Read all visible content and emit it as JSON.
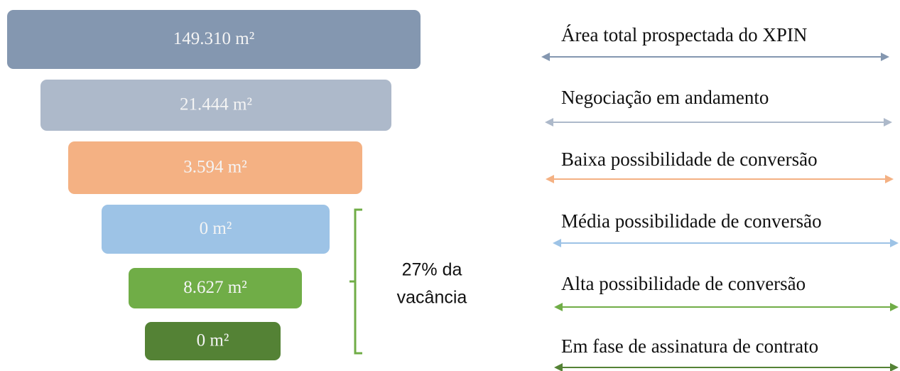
{
  "stages": [
    {
      "label": "149.310 m²",
      "description": "Área total prospectada do XPIN",
      "color": "#8497b0"
    },
    {
      "label": "21.444 m²",
      "description": "Negociação em andamento",
      "color": "#adb9ca"
    },
    {
      "label": "3.594 m²",
      "description": "Baixa possibilidade de conversão",
      "color": "#f4b183"
    },
    {
      "label": "0 m²",
      "description": "Média possibilidade de conversão",
      "color": "#9dc3e6"
    },
    {
      "label": "8.627 m²",
      "description": "Alta possibilidade de conversão",
      "color": "#70ad47"
    },
    {
      "label": "0 m²",
      "description": "Em fase de assinatura de contrato",
      "color": "#548235"
    }
  ],
  "note": {
    "lines": [
      "27% da",
      "vacância"
    ],
    "color": "#70ad47"
  }
}
